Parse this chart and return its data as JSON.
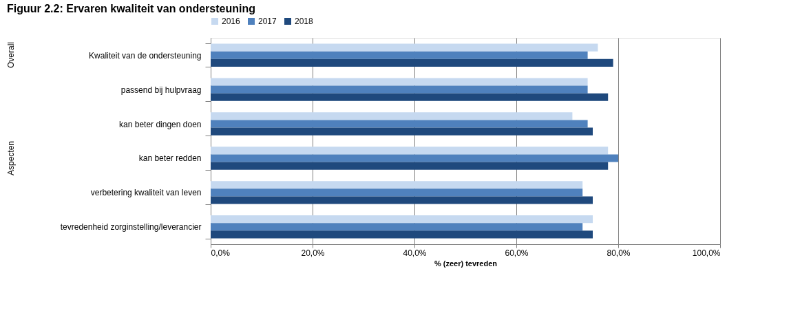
{
  "chart_data": {
    "type": "bar",
    "orientation": "horizontal",
    "title": "Figuur 2.2: Ervaren kwaliteit van ondersteuning",
    "xlabel": "% (zeer) tevreden",
    "categories": [
      "Kwaliteit van de ondersteuning",
      "passend bij hulpvraag",
      "kan beter dingen doen",
      "kan beter redden",
      "verbetering kwaliteit van leven",
      "tevredenheid zorginstelling/leverancier"
    ],
    "series": [
      {
        "name": "2016",
        "color": "#c6d9f0",
        "values": [
          76,
          74,
          71,
          78,
          73,
          75
        ]
      },
      {
        "name": "2017",
        "color": "#4f81bd",
        "values": [
          74,
          74,
          74,
          80,
          73,
          73
        ]
      },
      {
        "name": "2018",
        "color": "#1f497d",
        "values": [
          79,
          78,
          75,
          78,
          75,
          75
        ]
      }
    ],
    "xlim": [
      0,
      100
    ],
    "xticks": [
      {
        "value": 0,
        "label": "0,0%"
      },
      {
        "value": 20,
        "label": "20,0%"
      },
      {
        "value": 40,
        "label": "40,0%"
      },
      {
        "value": 60,
        "label": "60,0%"
      },
      {
        "value": 80,
        "label": "80,0%"
      },
      {
        "value": 100,
        "label": "100,0%"
      }
    ],
    "annotations": [
      "Overall",
      "Aspecten"
    ],
    "grid": "x",
    "legend": "top"
  }
}
